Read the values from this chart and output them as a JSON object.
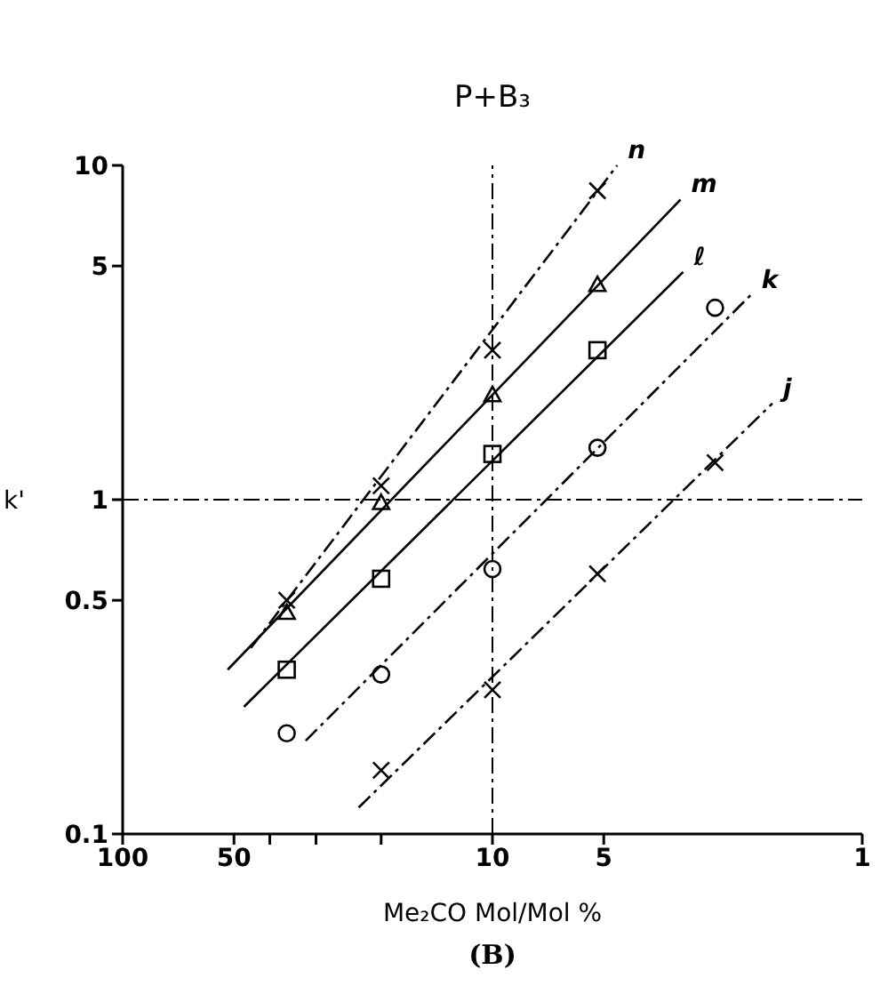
{
  "chart_data": {
    "type": "line",
    "title": "P+B₃",
    "xlabel": "Me₂CO Mol/Mol %",
    "ylabel": "k'",
    "annotations": [
      "(B)"
    ],
    "log": "xy",
    "xlim": [
      100,
      1
    ],
    "xticks": [
      100,
      50,
      {
        "value": 40,
        "label": null
      },
      {
        "value": 30,
        "label": null
      },
      {
        "value": 20,
        "label": null
      },
      10,
      5,
      1
    ],
    "ylim": [
      0.1,
      10
    ],
    "yticks": [
      0.1,
      0.5,
      1,
      5,
      10
    ],
    "ref_lines": [
      {
        "axis": "x",
        "value": 10,
        "line_style": "dashed"
      },
      {
        "axis": "y",
        "value": 1,
        "line_style": "dashed"
      }
    ],
    "series": [
      {
        "type": "scatter",
        "marker": "cross",
        "color": "#000000",
        "x": [
          36,
          20,
          10,
          5.2
        ],
        "values": [
          0.5,
          1.1,
          2.8,
          8.4
        ]
      },
      {
        "type": "line",
        "name": "n",
        "line_style": "dashed",
        "color": "#000000",
        "x": [
          45,
          4.6
        ],
        "values": [
          0.36,
          10
        ]
      },
      {
        "type": "scatter",
        "marker": "triangle",
        "color": "#000000",
        "x": [
          36,
          20,
          10,
          5.2
        ],
        "values": [
          0.46,
          0.98,
          2.06,
          4.4
        ]
      },
      {
        "type": "line",
        "name": "m",
        "line_style": "solid",
        "color": "#000000",
        "x": [
          52,
          3.1
        ],
        "values": [
          0.31,
          7.9
        ]
      },
      {
        "type": "scatter",
        "marker": "square",
        "color": "#000000",
        "x": [
          36,
          20,
          10,
          5.2
        ],
        "values": [
          0.31,
          0.58,
          1.37,
          2.8
        ]
      },
      {
        "type": "line",
        "name": "ℓ",
        "line_style": "solid",
        "color": "#000000",
        "x": [
          47,
          3.05
        ],
        "values": [
          0.24,
          4.8
        ]
      },
      {
        "type": "scatter",
        "marker": "circle",
        "color": "#000000",
        "x": [
          36,
          20,
          10,
          5.2,
          2.5
        ],
        "values": [
          0.2,
          0.3,
          0.62,
          1.43,
          3.75
        ]
      },
      {
        "type": "line",
        "name": "k",
        "line_style": "dashed",
        "color": "#000000",
        "x": [
          32,
          2.0
        ],
        "values": [
          0.19,
          4.1
        ]
      },
      {
        "type": "scatter",
        "marker": "cross",
        "color": "#000000",
        "x": [
          20,
          10,
          5.2,
          2.5
        ],
        "values": [
          0.155,
          0.27,
          0.6,
          1.29
        ]
      },
      {
        "type": "line",
        "name": "j",
        "line_style": "dashed",
        "color": "#000000",
        "x": [
          23,
          1.75
        ],
        "values": [
          0.12,
          1.94
        ]
      }
    ]
  }
}
